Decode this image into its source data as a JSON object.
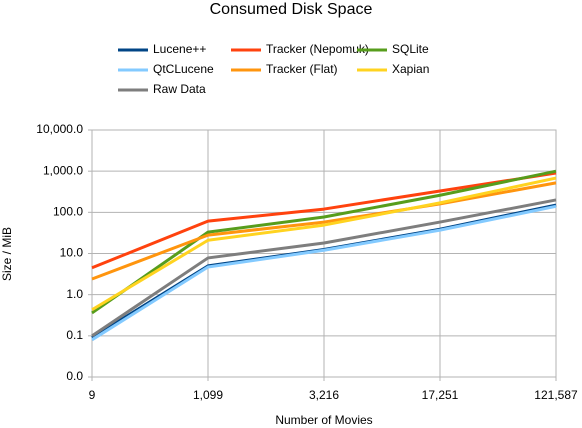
{
  "chart_data": {
    "type": "line",
    "title": "Consumed Disk Space",
    "x_label": "Number of Movies",
    "y_label": "Size / MiB",
    "categories": [
      "9",
      "1,099",
      "3,216",
      "17,251",
      "121,587"
    ],
    "ylog": true,
    "grid": true,
    "ylim": [
      0.01,
      10000
    ],
    "yticks": [
      {
        "value": 0.01,
        "label": "0.0"
      },
      {
        "value": 0.1,
        "label": "0.1"
      },
      {
        "value": 1,
        "label": "1.0"
      },
      {
        "value": 10,
        "label": "10.0"
      },
      {
        "value": 100,
        "label": "100.0"
      },
      {
        "value": 1000,
        "label": "1,000.0"
      },
      {
        "value": 10000,
        "label": "10,000.0"
      }
    ],
    "legend": "top",
    "series": [
      {
        "name": "Lucene++",
        "color": "#004586",
        "values": [
          0.09,
          5,
          12.5,
          39,
          150
        ]
      },
      {
        "name": "Tracker (Nepomuk)",
        "color": "#ff420e",
        "values": [
          4.5,
          61,
          120,
          330,
          900
        ]
      },
      {
        "name": "SQLite",
        "color": "#579d1c",
        "values": [
          0.36,
          33,
          77,
          260,
          1000
        ]
      },
      {
        "name": "QtCLucene",
        "color": "#83caff",
        "values": [
          0.08,
          4.7,
          12,
          37,
          140
        ]
      },
      {
        "name": "Tracker (Flat)",
        "color": "#ff950e",
        "values": [
          2.4,
          28,
          58,
          160,
          520
        ]
      },
      {
        "name": "Xapian",
        "color": "#ffd320",
        "values": [
          0.43,
          21,
          49,
          170,
          680
        ]
      },
      {
        "name": "Raw Data",
        "color": "#7e7e7e",
        "values": [
          0.1,
          7.8,
          18,
          58,
          200
        ]
      }
    ]
  }
}
